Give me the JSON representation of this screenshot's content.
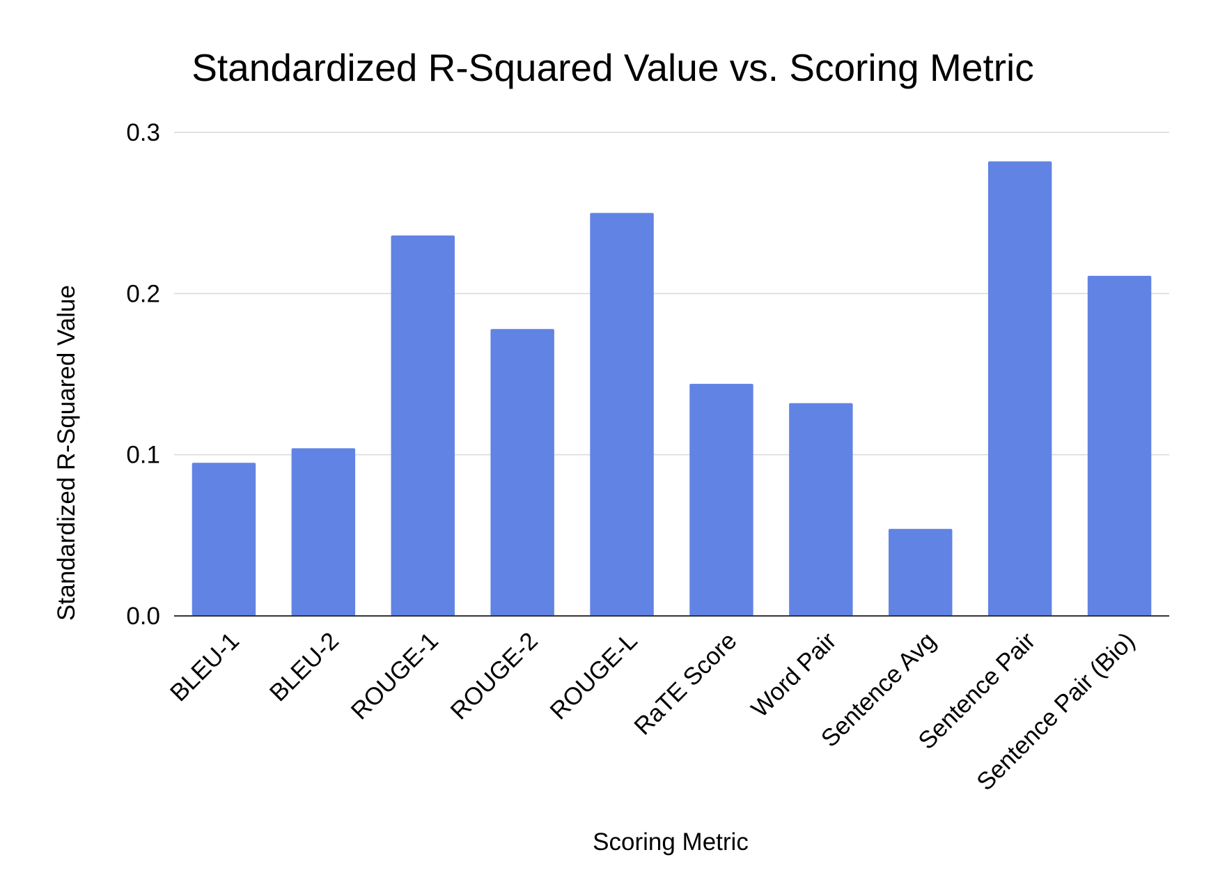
{
  "chart_data": {
    "type": "bar",
    "title": "Standardized R-Squared Value vs. Scoring Metric",
    "xlabel": "Scoring Metric",
    "ylabel": "Standardized R-Squared Value",
    "categories": [
      "BLEU-1",
      "BLEU-2",
      "ROUGE-1",
      "ROUGE-2",
      "ROUGE-L",
      "RaTE Score",
      "Word Pair",
      "Sentence Avg",
      "Sentence Pair",
      "Sentence Pair (Bio)"
    ],
    "values": [
      0.095,
      0.104,
      0.236,
      0.178,
      0.25,
      0.144,
      0.132,
      0.054,
      0.282,
      0.211
    ],
    "ylim": [
      0,
      0.3
    ],
    "yticks": [
      "0.0",
      "0.1",
      "0.2",
      "0.3"
    ],
    "grid": true,
    "bar_color": "#6183e4",
    "grid_color": "#d9d9d9",
    "axis_color": "#333333"
  }
}
